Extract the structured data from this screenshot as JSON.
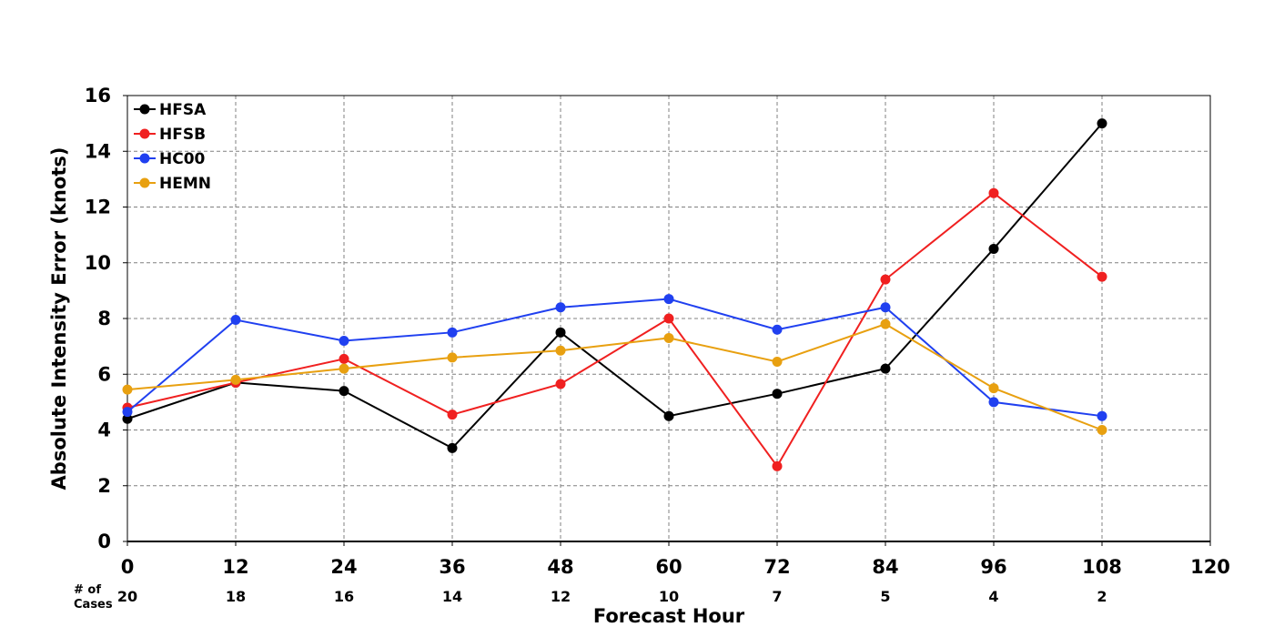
{
  "chart_data": {
    "type": "line",
    "xlabel": "Forecast Hour",
    "ylabel": "Absolute Intensity Error (knots)",
    "xlim": [
      0,
      120
    ],
    "ylim": [
      0,
      16
    ],
    "xticks": [
      0,
      12,
      24,
      36,
      48,
      60,
      72,
      84,
      96,
      108,
      120
    ],
    "yticks": [
      0,
      2,
      4,
      6,
      8,
      10,
      12,
      14,
      16
    ],
    "grid": true,
    "legend_position": "top-left",
    "cases_title": [
      "# of",
      "Cases"
    ],
    "cases": [
      {
        "x": 0,
        "n": "20"
      },
      {
        "x": 12,
        "n": "18"
      },
      {
        "x": 24,
        "n": "16"
      },
      {
        "x": 36,
        "n": "14"
      },
      {
        "x": 48,
        "n": "12"
      },
      {
        "x": 60,
        "n": "10"
      },
      {
        "x": 72,
        "n": "7"
      },
      {
        "x": 84,
        "n": "5"
      },
      {
        "x": 96,
        "n": "4"
      },
      {
        "x": 108,
        "n": "2"
      }
    ],
    "x": [
      0,
      12,
      24,
      36,
      48,
      60,
      72,
      84,
      96,
      108
    ],
    "series": [
      {
        "name": "HFSA",
        "color": "#000000",
        "values": [
          4.4,
          5.7,
          5.4,
          3.35,
          7.5,
          4.5,
          5.3,
          6.2,
          10.5,
          15.0
        ]
      },
      {
        "name": "HFSB",
        "color": "#f02020",
        "values": [
          4.8,
          5.7,
          6.55,
          4.55,
          5.65,
          8.0,
          2.7,
          9.4,
          12.5,
          9.5
        ]
      },
      {
        "name": "HC00",
        "color": "#2040f0",
        "values": [
          4.65,
          7.95,
          7.2,
          7.5,
          8.4,
          8.7,
          7.6,
          8.4,
          5.0,
          4.5
        ]
      },
      {
        "name": "HEMN",
        "color": "#e8a010",
        "values": [
          5.45,
          5.8,
          6.2,
          6.6,
          6.85,
          7.3,
          6.45,
          7.8,
          5.5,
          4.0
        ]
      }
    ]
  }
}
